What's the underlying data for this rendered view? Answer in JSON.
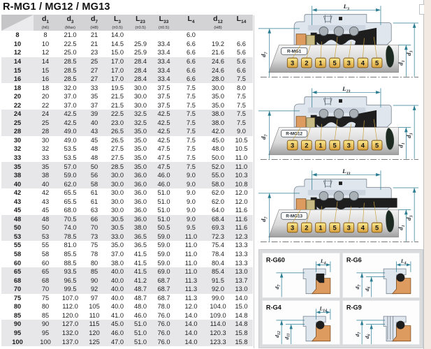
{
  "title": "R-MG1 / MG12 / MG13",
  "colors": {
    "accent_teal": "#2b7d92",
    "tag_yellow": "#edc95f",
    "ring_orange": "#de9b5f",
    "band_gray": "#e7e7ea",
    "header_gray": "#d3d3d6"
  },
  "table": {
    "columns": [
      {
        "main": "",
        "sub": "",
        "note": "",
        "blank": true
      },
      {
        "main": "d",
        "sub": "1",
        "note": "(h6)"
      },
      {
        "main": "d",
        "sub": "3",
        "note": "(Max)"
      },
      {
        "main": "d",
        "sub": "7",
        "note": "(H8)"
      },
      {
        "main": "L",
        "sub": "3",
        "note": "(±0.5)"
      },
      {
        "main": "L",
        "sub": "23",
        "note": "(±0.5)"
      },
      {
        "main": "L",
        "sub": "33",
        "note": "(±0.5)"
      },
      {
        "main": "L",
        "sub": "4",
        "note": ""
      },
      {
        "main": "d",
        "sub": "12",
        "note": "(H8)"
      },
      {
        "main": "L",
        "sub": "14",
        "note": ""
      }
    ],
    "rows": [
      [
        "8",
        "8",
        "21.0",
        "21",
        "14.0",
        "",
        "",
        "6.0",
        "",
        ""
      ],
      [
        "10",
        "10",
        "22.5",
        "21",
        "14.5",
        "25.9",
        "33.4",
        "6.6",
        "19.2",
        "6.6"
      ],
      [
        "12",
        "12",
        "25.0",
        "23",
        "15.0",
        "25.9",
        "33.4",
        "6.6",
        "21.6",
        "5.6"
      ],
      [
        "14",
        "14",
        "28.5",
        "25",
        "17.0",
        "28.4",
        "33.4",
        "6.6",
        "24.6",
        "5.6"
      ],
      [
        "15",
        "15",
        "28.5",
        "27",
        "17.0",
        "28.4",
        "33.4",
        "6.6",
        "24.6",
        "6.6"
      ],
      [
        "16",
        "16",
        "28.5",
        "27",
        "17.0",
        "28.4",
        "33.4",
        "6.6",
        "28.0",
        "7.5"
      ],
      [
        "18",
        "18",
        "32.0",
        "33",
        "19.5",
        "30.0",
        "37.5",
        "7.5",
        "30.0",
        "8.0"
      ],
      [
        "20",
        "20",
        "37.0",
        "35",
        "21.5",
        "30.0",
        "37.5",
        "7.5",
        "35.0",
        "7.5"
      ],
      [
        "22",
        "22",
        "37.0",
        "37",
        "21.5",
        "30.0",
        "37.5",
        "7.5",
        "35.0",
        "7.5"
      ],
      [
        "24",
        "24",
        "42.5",
        "39",
        "22.5",
        "32.5",
        "42.5",
        "7.5",
        "38.0",
        "7.5"
      ],
      [
        "25",
        "25",
        "42.5",
        "40",
        "23.0",
        "32.5",
        "42.5",
        "7.5",
        "38.0",
        "7.5"
      ],
      [
        "28",
        "28",
        "49.0",
        "43",
        "26.5",
        "35.0",
        "42.5",
        "7.5",
        "42.0",
        "9.0"
      ],
      [
        "30",
        "30",
        "49.0",
        "45",
        "26.5",
        "35.0",
        "42.5",
        "7.5",
        "45.0",
        "10.5"
      ],
      [
        "32",
        "32",
        "53.5",
        "48",
        "27.5",
        "35.0",
        "47.5",
        "7.5",
        "48.0",
        "10.5"
      ],
      [
        "33",
        "33",
        "53.5",
        "48",
        "27.5",
        "35.0",
        "47.5",
        "7.5",
        "50.0",
        "11.0"
      ],
      [
        "35",
        "35",
        "57.0",
        "50",
        "28.5",
        "35.0",
        "47.5",
        "7.5",
        "52.0",
        "11.0"
      ],
      [
        "38",
        "38",
        "59.0",
        "56",
        "30.0",
        "36.0",
        "46.0",
        "9.0",
        "55.0",
        "10.3"
      ],
      [
        "40",
        "40",
        "62.0",
        "58",
        "30.0",
        "36.0",
        "46.0",
        "9.0",
        "58.0",
        "10.8"
      ],
      [
        "42",
        "42",
        "65.5",
        "61",
        "30.0",
        "36.0",
        "51.0",
        "9.0",
        "62.0",
        "12.0"
      ],
      [
        "43",
        "43",
        "65.5",
        "61",
        "30.0",
        "36.0",
        "51.0",
        "9.0",
        "62.0",
        "12.0"
      ],
      [
        "45",
        "45",
        "68.0",
        "63",
        "30.0",
        "36.0",
        "51.0",
        "9.0",
        "64.0",
        "11.6"
      ],
      [
        "48",
        "48",
        "70.5",
        "66",
        "30.5",
        "36.0",
        "51.0",
        "9.0",
        "68.4",
        "11.6"
      ],
      [
        "50",
        "50",
        "74.0",
        "70",
        "30.5",
        "38.0",
        "50.5",
        "9.5",
        "69.3",
        "11.6"
      ],
      [
        "53",
        "53",
        "78.5",
        "73",
        "33.0",
        "36.5",
        "59.0",
        "11.0",
        "72.3",
        "12.3"
      ],
      [
        "55",
        "55",
        "81.0",
        "75",
        "35.0",
        "36.5",
        "59.0",
        "11.0",
        "75.4",
        "13.3"
      ],
      [
        "58",
        "58",
        "85.5",
        "78",
        "37.0",
        "41.5",
        "59.0",
        "11.0",
        "78.4",
        "13.3"
      ],
      [
        "60",
        "60",
        "88.5",
        "80",
        "38.0",
        "41.5",
        "59.0",
        "11.0",
        "80.4",
        "13.3"
      ],
      [
        "65",
        "65",
        "93.5",
        "85",
        "40.0",
        "41.5",
        "69.0",
        "11.0",
        "85.4",
        "13.0"
      ],
      [
        "68",
        "68",
        "96.5",
        "90",
        "40.0",
        "41.2",
        "68.7",
        "11.3",
        "91.5",
        "13.7"
      ],
      [
        "70",
        "70",
        "99.5",
        "92",
        "40.0",
        "48.7",
        "68.7",
        "11.3",
        "92.0",
        "13.0"
      ],
      [
        "75",
        "75",
        "107.0",
        "97",
        "40.0",
        "48.7",
        "68.7",
        "11.3",
        "99.0",
        "14.0"
      ],
      [
        "80",
        "80",
        "112.0",
        "105",
        "40.0",
        "48.0",
        "78.0",
        "12.0",
        "104.0",
        "15.0"
      ],
      [
        "85",
        "85",
        "120.0",
        "110",
        "41.0",
        "46.0",
        "76.0",
        "14.0",
        "109.0",
        "14.8"
      ],
      [
        "90",
        "90",
        "127.0",
        "115",
        "45.0",
        "51.0",
        "76.0",
        "14.0",
        "114.0",
        "14.8"
      ],
      [
        "95",
        "95",
        "132.0",
        "120",
        "46.0",
        "51.0",
        "76.0",
        "14.0",
        "120.3",
        "15.8"
      ],
      [
        "100",
        "100",
        "137.0",
        "125",
        "47.0",
        "51.0",
        "76.0",
        "14.0",
        "123.3",
        "15.8"
      ]
    ]
  },
  "mg_diagrams": [
    {
      "variant": "mg1",
      "label": "R-MG1",
      "top_main": "L",
      "top_sub": "3",
      "left_main": "d",
      "left_sub": "7",
      "right1_main": "d",
      "right1_sub": "1",
      "right2_main": "d",
      "right2_sub": "3",
      "tags": [
        "3",
        "2",
        "1",
        "5",
        "3",
        "4",
        "5"
      ]
    },
    {
      "variant": "mg12",
      "label": "R-MG12",
      "top_main": "L",
      "top_sub": "23",
      "left_main": "d",
      "left_sub": "7",
      "right1_main": "d",
      "right1_sub": "1",
      "right2_main": "d",
      "right2_sub": "3",
      "tags": [
        "3",
        "2",
        "1",
        "5",
        "3",
        "4",
        "5"
      ]
    },
    {
      "variant": "mg13",
      "label": "R-MG13",
      "top_main": "L",
      "top_sub": "33",
      "left_main": "d",
      "left_sub": "7",
      "right1_main": "d",
      "right1_sub": "1",
      "right2_main": "d",
      "right2_sub": "3",
      "tags": [
        "3",
        "2",
        "1",
        "5",
        "3",
        "4",
        "5"
      ]
    }
  ],
  "detail_cards": [
    {
      "variant": "g60",
      "label": "R-G60",
      "top_main": "L",
      "top_sub": "4",
      "left1_main": "d",
      "left1_sub": "7",
      "left2_main": "",
      "left2_sub": ""
    },
    {
      "variant": "g6",
      "label": "R-G6",
      "top_main": "L",
      "top_sub": "4",
      "left1_main": "d",
      "left1_sub": "7",
      "left2_main": "d",
      "left2_sub": "6"
    },
    {
      "variant": "g4",
      "label": "R-G4",
      "top_main": "L",
      "top_sub": "14",
      "left1_main": "d",
      "left1_sub": "12",
      "left2_main": "d",
      "left2_sub": "11"
    },
    {
      "variant": "g9",
      "label": "R-G9",
      "top_main": "",
      "top_sub": "",
      "left1_main": "d",
      "left1_sub": "7",
      "left2_main": "d",
      "left2_sub": "6"
    }
  ]
}
